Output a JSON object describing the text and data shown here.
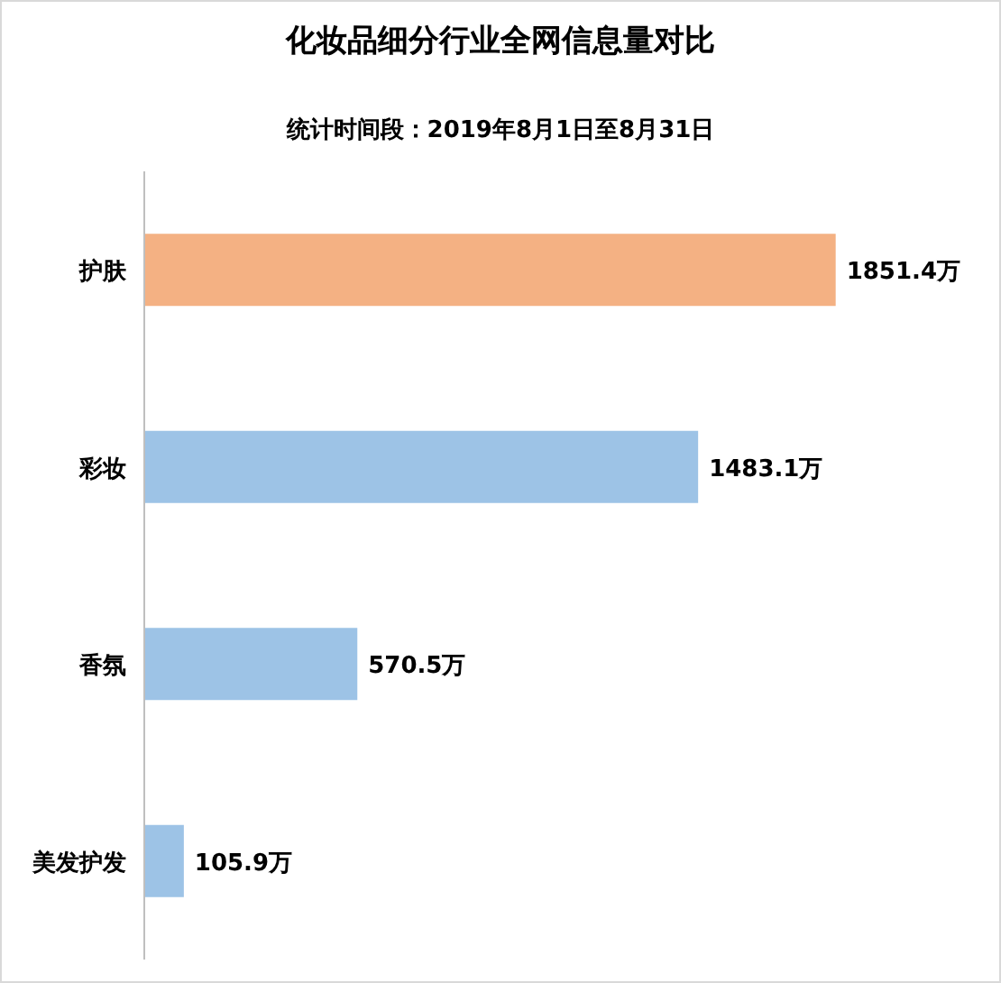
{
  "chart_data": {
    "type": "bar",
    "orientation": "horizontal",
    "title": "化妆品细分行业全网信息量对比",
    "subtitle": "统计时间段：2019年8月1日至8月31日",
    "categories": [
      "护肤",
      "彩妆",
      "香氛",
      "美发护发"
    ],
    "values": [
      1851.4,
      1483.1,
      570.5,
      105.9
    ],
    "colors": [
      "#f4b183",
      "#9dc3e6",
      "#9dc3e6",
      "#9dc3e6"
    ],
    "value_labels": [
      "1851.4万",
      "1483.1万",
      "570.5万",
      "105.9万"
    ]
  }
}
